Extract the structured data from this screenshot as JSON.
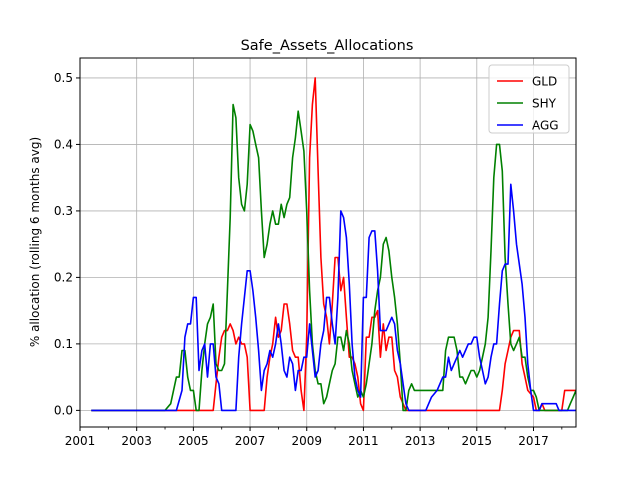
{
  "chart_data": {
    "type": "line",
    "title": "Safe_Assets_Allocations",
    "xlabel": "",
    "ylabel": "% allocation (rolling 6 months avg)",
    "xlim": [
      2001.0,
      2018.5
    ],
    "ylim": [
      -0.025,
      0.53
    ],
    "xticks": [
      2001,
      2003,
      2005,
      2007,
      2009,
      2011,
      2013,
      2015,
      2017
    ],
    "xtick_labels": [
      "2001",
      "2003",
      "2005",
      "2007",
      "2009",
      "2011",
      "2013",
      "2015",
      "2017"
    ],
    "yticks": [
      0.0,
      0.1,
      0.2,
      0.3,
      0.4,
      0.5
    ],
    "ytick_labels": [
      "0.0",
      "0.1",
      "0.2",
      "0.3",
      "0.4",
      "0.5"
    ],
    "grid": true,
    "legend_position": "top-right",
    "series": [
      {
        "name": "GLD",
        "color": "#ff0000",
        "x": [
          2001.4,
          2005.7,
          2005.8,
          2005.9,
          2006.0,
          2006.1,
          2006.2,
          2006.3,
          2006.4,
          2006.5,
          2006.6,
          2006.7,
          2006.8,
          2006.9,
          2007.0,
          2007.5,
          2007.6,
          2007.7,
          2007.8,
          2007.9,
          2008.0,
          2008.1,
          2008.2,
          2008.3,
          2008.4,
          2008.5,
          2008.6,
          2008.7,
          2008.8,
          2008.9,
          2009.0,
          2009.1,
          2009.2,
          2009.3,
          2009.4,
          2009.5,
          2009.6,
          2009.7,
          2009.8,
          2009.9,
          2010.0,
          2010.1,
          2010.2,
          2010.3,
          2010.4,
          2010.5,
          2010.6,
          2010.7,
          2010.8,
          2010.9,
          2011.0,
          2011.1,
          2011.2,
          2011.3,
          2011.4,
          2011.5,
          2011.6,
          2011.7,
          2011.8,
          2011.9,
          2012.0,
          2012.1,
          2012.2,
          2012.3,
          2012.4,
          2012.5,
          2015.8,
          2015.9,
          2016.0,
          2016.1,
          2016.2,
          2016.3,
          2016.4,
          2016.5,
          2016.6,
          2016.7,
          2016.8,
          2017.0,
          2017.1,
          2017.2,
          2017.3,
          2017.4,
          2018.0,
          2018.1,
          2018.2,
          2018.3,
          2018.5
        ],
        "values": [
          0.0,
          0.0,
          0.04,
          0.08,
          0.11,
          0.12,
          0.12,
          0.13,
          0.12,
          0.1,
          0.11,
          0.1,
          0.1,
          0.08,
          0.0,
          0.0,
          0.05,
          0.08,
          0.1,
          0.14,
          0.11,
          0.12,
          0.16,
          0.16,
          0.13,
          0.09,
          0.08,
          0.08,
          0.03,
          0.0,
          0.11,
          0.38,
          0.46,
          0.5,
          0.36,
          0.23,
          0.16,
          0.14,
          0.1,
          0.16,
          0.23,
          0.23,
          0.18,
          0.2,
          0.14,
          0.08,
          0.08,
          0.07,
          0.05,
          0.01,
          0.0,
          0.11,
          0.11,
          0.14,
          0.14,
          0.15,
          0.08,
          0.13,
          0.09,
          0.11,
          0.11,
          0.06,
          0.05,
          0.02,
          0.01,
          0.0,
          0.0,
          0.03,
          0.07,
          0.09,
          0.11,
          0.12,
          0.12,
          0.12,
          0.07,
          0.05,
          0.03,
          0.02,
          0.0,
          0.0,
          0.01,
          0.0,
          0.0,
          0.03,
          0.03,
          0.03,
          0.03
        ]
      },
      {
        "name": "SHY",
        "color": "#008000",
        "x": [
          2001.4,
          2004.0,
          2004.2,
          2004.4,
          2004.5,
          2004.6,
          2004.7,
          2004.8,
          2004.9,
          2005.0,
          2005.1,
          2005.2,
          2005.3,
          2005.4,
          2005.5,
          2005.6,
          2005.7,
          2005.8,
          2005.9,
          2006.0,
          2006.1,
          2006.2,
          2006.3,
          2006.4,
          2006.5,
          2006.6,
          2006.7,
          2006.8,
          2006.9,
          2007.0,
          2007.1,
          2007.2,
          2007.3,
          2007.4,
          2007.5,
          2007.6,
          2007.7,
          2007.8,
          2007.9,
          2008.0,
          2008.1,
          2008.2,
          2008.3,
          2008.4,
          2008.5,
          2008.6,
          2008.7,
          2008.8,
          2008.9,
          2009.0,
          2009.1,
          2009.2,
          2009.3,
          2009.4,
          2009.5,
          2009.6,
          2009.7,
          2009.8,
          2009.9,
          2010.0,
          2010.1,
          2010.2,
          2010.3,
          2010.4,
          2010.5,
          2010.6,
          2010.7,
          2010.8,
          2010.9,
          2011.0,
          2011.1,
          2011.2,
          2011.3,
          2011.4,
          2011.5,
          2011.6,
          2011.7,
          2011.8,
          2011.9,
          2012.0,
          2012.1,
          2012.2,
          2012.3,
          2012.4,
          2012.5,
          2012.6,
          2012.7,
          2012.8,
          2013.0,
          2013.2,
          2013.4,
          2013.6,
          2013.8,
          2013.9,
          2014.0,
          2014.1,
          2014.2,
          2014.3,
          2014.4,
          2014.5,
          2014.6,
          2014.7,
          2014.8,
          2014.9,
          2015.0,
          2015.1,
          2015.2,
          2015.3,
          2015.4,
          2015.5,
          2015.6,
          2015.7,
          2015.8,
          2015.9,
          2016.0,
          2016.1,
          2016.2,
          2016.3,
          2016.4,
          2016.5,
          2016.6,
          2016.7,
          2016.8,
          2016.9,
          2017.0,
          2017.1,
          2017.2,
          2018.2,
          2018.3,
          2018.4,
          2018.5
        ],
        "values": [
          0.0,
          0.0,
          0.01,
          0.05,
          0.05,
          0.09,
          0.09,
          0.05,
          0.03,
          0.03,
          0.0,
          0.0,
          0.06,
          0.1,
          0.13,
          0.14,
          0.16,
          0.07,
          0.06,
          0.06,
          0.07,
          0.18,
          0.29,
          0.46,
          0.44,
          0.35,
          0.31,
          0.3,
          0.34,
          0.43,
          0.42,
          0.4,
          0.38,
          0.3,
          0.23,
          0.25,
          0.28,
          0.3,
          0.28,
          0.28,
          0.31,
          0.29,
          0.31,
          0.32,
          0.38,
          0.41,
          0.45,
          0.42,
          0.39,
          0.3,
          0.18,
          0.1,
          0.06,
          0.04,
          0.04,
          0.01,
          0.02,
          0.04,
          0.06,
          0.07,
          0.11,
          0.11,
          0.09,
          0.12,
          0.1,
          0.06,
          0.04,
          0.02,
          0.03,
          0.02,
          0.04,
          0.07,
          0.1,
          0.15,
          0.18,
          0.2,
          0.25,
          0.26,
          0.24,
          0.2,
          0.17,
          0.13,
          0.07,
          0.0,
          0.0,
          0.03,
          0.04,
          0.03,
          0.03,
          0.03,
          0.03,
          0.03,
          0.03,
          0.09,
          0.11,
          0.11,
          0.11,
          0.09,
          0.05,
          0.05,
          0.04,
          0.05,
          0.06,
          0.06,
          0.05,
          0.06,
          0.08,
          0.1,
          0.14,
          0.24,
          0.35,
          0.4,
          0.4,
          0.36,
          0.23,
          0.16,
          0.1,
          0.09,
          0.1,
          0.11,
          0.08,
          0.08,
          0.05,
          0.03,
          0.03,
          0.02,
          0.0,
          0.0,
          0.01,
          0.02,
          0.03
        ]
      },
      {
        "name": "AGG",
        "color": "#0000ff",
        "x": [
          2001.4,
          2004.4,
          2004.6,
          2004.7,
          2004.8,
          2004.9,
          2005.0,
          2005.1,
          2005.2,
          2005.3,
          2005.4,
          2005.5,
          2005.6,
          2005.7,
          2005.8,
          2005.9,
          2006.0,
          2006.5,
          2006.6,
          2006.7,
          2006.8,
          2006.9,
          2007.0,
          2007.1,
          2007.2,
          2007.3,
          2007.4,
          2007.5,
          2007.6,
          2007.7,
          2007.8,
          2007.9,
          2008.0,
          2008.1,
          2008.2,
          2008.3,
          2008.4,
          2008.5,
          2008.6,
          2008.7,
          2008.8,
          2008.9,
          2009.0,
          2009.1,
          2009.2,
          2009.3,
          2009.4,
          2009.5,
          2009.6,
          2009.7,
          2009.8,
          2009.9,
          2010.0,
          2010.1,
          2010.2,
          2010.3,
          2010.4,
          2010.5,
          2010.6,
          2010.7,
          2010.8,
          2010.9,
          2011.0,
          2011.1,
          2011.2,
          2011.3,
          2011.4,
          2011.5,
          2011.6,
          2011.7,
          2011.8,
          2011.9,
          2012.0,
          2012.1,
          2012.2,
          2012.3,
          2012.4,
          2012.5,
          2012.6,
          2012.7,
          2012.8,
          2012.9,
          2013.0,
          2013.1,
          2013.2,
          2013.4,
          2013.6,
          2013.8,
          2013.9,
          2014.0,
          2014.1,
          2014.2,
          2014.3,
          2014.4,
          2014.5,
          2014.6,
          2014.7,
          2014.8,
          2014.9,
          2015.0,
          2015.1,
          2015.2,
          2015.3,
          2015.4,
          2015.5,
          2015.6,
          2015.7,
          2015.8,
          2015.9,
          2016.0,
          2016.1,
          2016.2,
          2016.3,
          2016.4,
          2016.5,
          2016.6,
          2016.7,
          2016.8,
          2016.9,
          2017.0,
          2017.1,
          2017.2,
          2017.3,
          2017.4,
          2017.5,
          2017.6,
          2017.7,
          2017.8,
          2017.9,
          2018.0,
          2018.1,
          2018.5
        ],
        "values": [
          0.0,
          0.0,
          0.03,
          0.11,
          0.13,
          0.13,
          0.17,
          0.17,
          0.06,
          0.09,
          0.1,
          0.05,
          0.1,
          0.1,
          0.05,
          0.04,
          0.0,
          0.0,
          0.08,
          0.13,
          0.17,
          0.21,
          0.21,
          0.18,
          0.14,
          0.09,
          0.03,
          0.06,
          0.07,
          0.09,
          0.08,
          0.1,
          0.13,
          0.1,
          0.06,
          0.05,
          0.08,
          0.07,
          0.03,
          0.06,
          0.06,
          0.08,
          0.08,
          0.13,
          0.09,
          0.05,
          0.06,
          0.1,
          0.12,
          0.17,
          0.17,
          0.13,
          0.1,
          0.17,
          0.3,
          0.29,
          0.26,
          0.19,
          0.1,
          0.05,
          0.03,
          0.02,
          0.17,
          0.17,
          0.26,
          0.27,
          0.27,
          0.21,
          0.12,
          0.12,
          0.12,
          0.13,
          0.14,
          0.13,
          0.09,
          0.07,
          0.04,
          0.01,
          0.0,
          0.0,
          0.0,
          0.0,
          0.0,
          0.0,
          0.0,
          0.02,
          0.03,
          0.05,
          0.05,
          0.08,
          0.06,
          0.07,
          0.08,
          0.09,
          0.08,
          0.09,
          0.1,
          0.1,
          0.11,
          0.11,
          0.08,
          0.06,
          0.04,
          0.05,
          0.08,
          0.1,
          0.1,
          0.16,
          0.21,
          0.22,
          0.22,
          0.34,
          0.3,
          0.25,
          0.22,
          0.19,
          0.14,
          0.07,
          0.03,
          0.0,
          0.0,
          0.0,
          0.01,
          0.01,
          0.01,
          0.01,
          0.01,
          0.01,
          0.0,
          0.0,
          0.0,
          0.0
        ]
      }
    ]
  }
}
